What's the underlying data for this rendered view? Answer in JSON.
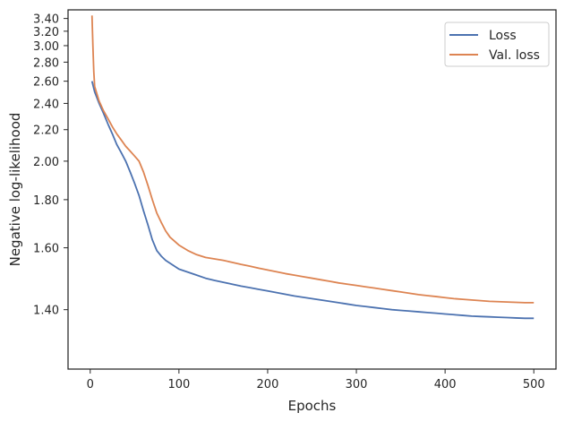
{
  "chart_data": {
    "type": "line",
    "title": "",
    "xlabel": "Epochs",
    "ylabel": "Negative log-likelihood",
    "xlim": [
      -25,
      525
    ],
    "ylim": [
      1.25,
      3.55
    ],
    "y_scale": "reciprocal",
    "grid": false,
    "legend_position": "top-right",
    "x_ticks": [
      0,
      100,
      200,
      300,
      400,
      500
    ],
    "x_tick_labels": [
      "0",
      "100",
      "200",
      "300",
      "400",
      "500"
    ],
    "y_ticks": [
      1.4,
      1.6,
      1.8,
      2.0,
      2.2,
      2.4,
      2.6,
      2.8,
      3.0,
      3.2,
      3.4
    ],
    "y_tick_labels": [
      "1.40",
      "1.60",
      "1.80",
      "2.00",
      "2.20",
      "2.40",
      "2.60",
      "2.80",
      "3.00",
      "3.20",
      "3.40"
    ],
    "series": [
      {
        "name": "Loss",
        "color": "#4c72b0",
        "x": [
          2,
          5,
          10,
          15,
          20,
          25,
          30,
          35,
          40,
          45,
          50,
          55,
          60,
          65,
          70,
          75,
          80,
          85,
          90,
          95,
          100,
          110,
          120,
          130,
          140,
          150,
          160,
          170,
          180,
          190,
          200,
          210,
          220,
          230,
          240,
          250,
          260,
          270,
          280,
          290,
          300,
          310,
          320,
          330,
          340,
          350,
          360,
          370,
          380,
          390,
          400,
          410,
          420,
          430,
          440,
          450,
          460,
          470,
          480,
          490,
          500
        ],
        "y": [
          2.6,
          2.5,
          2.4,
          2.32,
          2.24,
          2.17,
          2.1,
          2.05,
          2.0,
          1.94,
          1.88,
          1.82,
          1.75,
          1.69,
          1.63,
          1.59,
          1.57,
          1.555,
          1.545,
          1.535,
          1.525,
          1.515,
          1.505,
          1.495,
          1.488,
          1.482,
          1.476,
          1.47,
          1.465,
          1.46,
          1.455,
          1.45,
          1.445,
          1.44,
          1.436,
          1.432,
          1.428,
          1.424,
          1.42,
          1.416,
          1.412,
          1.409,
          1.406,
          1.403,
          1.4,
          1.398,
          1.396,
          1.394,
          1.392,
          1.39,
          1.388,
          1.386,
          1.384,
          1.382,
          1.381,
          1.38,
          1.379,
          1.378,
          1.377,
          1.376,
          1.376
        ]
      },
      {
        "name": "Val. loss",
        "color": "#dd8452",
        "x": [
          2,
          3,
          4,
          5,
          10,
          15,
          20,
          25,
          30,
          35,
          40,
          45,
          50,
          55,
          60,
          65,
          70,
          75,
          80,
          85,
          90,
          95,
          100,
          110,
          120,
          130,
          140,
          150,
          160,
          170,
          180,
          190,
          200,
          210,
          220,
          230,
          240,
          250,
          260,
          270,
          280,
          290,
          300,
          310,
          320,
          330,
          340,
          350,
          360,
          370,
          380,
          390,
          400,
          410,
          420,
          430,
          440,
          450,
          460,
          470,
          480,
          490,
          500
        ],
        "y": [
          3.45,
          3.0,
          2.7,
          2.55,
          2.42,
          2.34,
          2.28,
          2.22,
          2.17,
          2.13,
          2.09,
          2.06,
          2.03,
          2.0,
          1.94,
          1.87,
          1.8,
          1.74,
          1.7,
          1.665,
          1.64,
          1.625,
          1.61,
          1.59,
          1.575,
          1.565,
          1.56,
          1.555,
          1.548,
          1.541,
          1.535,
          1.528,
          1.522,
          1.516,
          1.51,
          1.505,
          1.5,
          1.495,
          1.49,
          1.485,
          1.48,
          1.476,
          1.472,
          1.468,
          1.464,
          1.46,
          1.456,
          1.452,
          1.448,
          1.444,
          1.441,
          1.438,
          1.435,
          1.432,
          1.43,
          1.428,
          1.426,
          1.424,
          1.423,
          1.422,
          1.421,
          1.42,
          1.42
        ]
      }
    ]
  }
}
